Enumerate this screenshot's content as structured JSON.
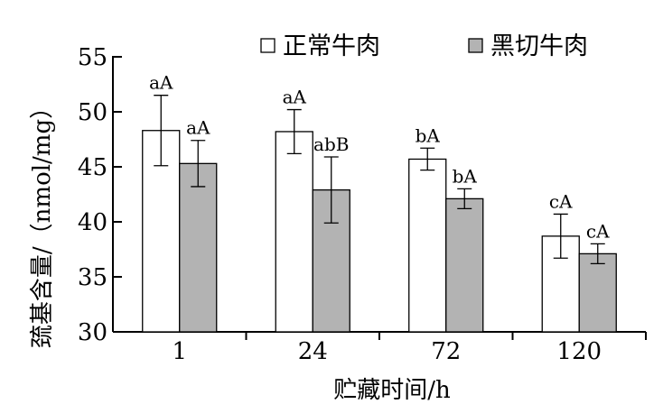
{
  "chart_data": {
    "type": "bar",
    "title": "",
    "xlabel": "贮藏时间/h",
    "ylabel": "巯基含量/（nmol/mg）",
    "categories": [
      "1",
      "24",
      "72",
      "120"
    ],
    "ylim": [
      30,
      55
    ],
    "yticks": [
      30,
      35,
      40,
      45,
      50,
      55
    ],
    "legend_position": "top",
    "grid": false,
    "series": [
      {
        "name": "正常牛肉",
        "color": "#ffffff",
        "values": [
          48.3,
          48.2,
          45.7,
          38.7
        ],
        "errors": [
          3.2,
          2.0,
          1.0,
          2.0
        ],
        "labels": [
          "aA",
          "aA",
          "bA",
          "cA"
        ]
      },
      {
        "name": "黑切牛肉",
        "color": "#b3b3b3",
        "values": [
          45.3,
          42.9,
          42.1,
          37.1
        ],
        "errors": [
          2.1,
          3.0,
          0.9,
          0.9
        ],
        "labels": [
          "aA",
          "abB",
          "bA",
          "cA"
        ]
      }
    ]
  }
}
